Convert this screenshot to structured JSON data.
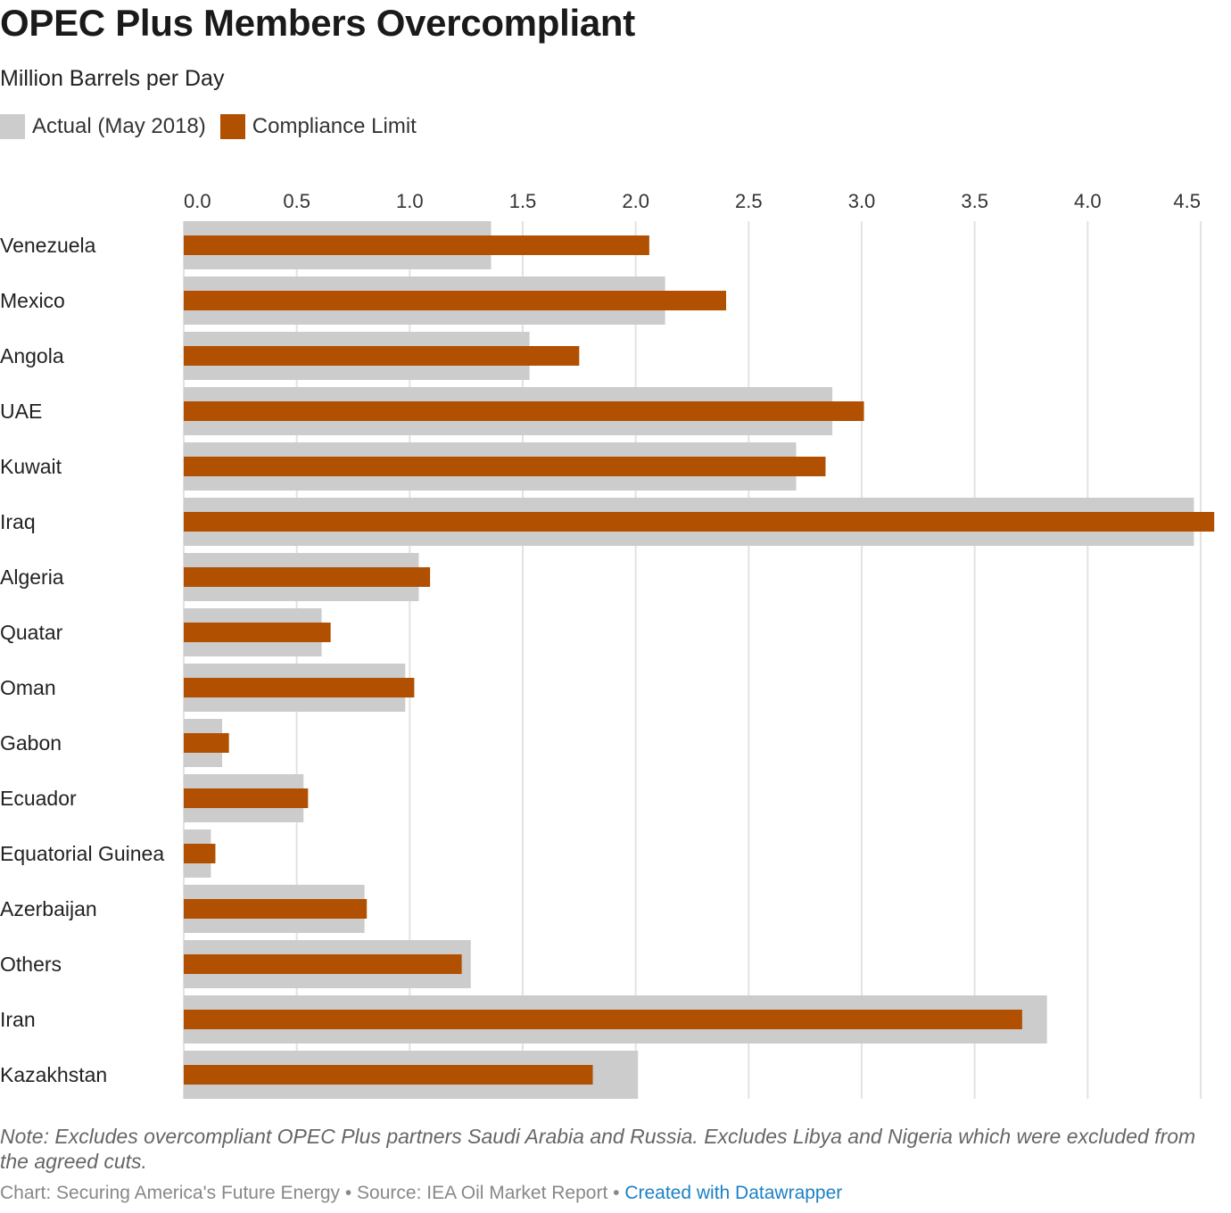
{
  "title": "OPEC Plus Members Overcompliant",
  "subtitle": "Million Barrels per Day",
  "legend": {
    "actual": "Actual (May 2018)",
    "limit": "Compliance Limit"
  },
  "colors": {
    "actual": "#cccccc",
    "limit": "#b15000",
    "grid": "#e2e2e2"
  },
  "note": "Note: Excludes overcompliant OPEC Plus partners Saudi Arabia and Russia. Excludes Libya and Nigeria which were excluded from the agreed cuts.",
  "footer": {
    "source": "Chart: Securing America's Future Energy • Source: IEA Oil Market Report • ",
    "credit": "Created with Datawrapper"
  },
  "chart_data": {
    "type": "bar",
    "orientation": "horizontal",
    "categories": [
      "Venezuela",
      "Mexico",
      "Angola",
      "UAE",
      "Kuwait",
      "Iraq",
      "Algeria",
      "Quatar",
      "Oman",
      "Gabon",
      "Ecuador",
      "Equatorial Guinea",
      "Azerbaijan",
      "Others",
      "Iran",
      "Kazakhstan"
    ],
    "series": [
      {
        "name": "Actual (May 2018)",
        "values": [
          1.36,
          2.13,
          1.53,
          2.87,
          2.71,
          4.47,
          1.04,
          0.61,
          0.98,
          0.17,
          0.53,
          0.12,
          0.8,
          1.27,
          3.82,
          2.01
        ]
      },
      {
        "name": "Compliance Limit",
        "values": [
          2.06,
          2.4,
          1.75,
          3.01,
          2.84,
          4.56,
          1.09,
          0.65,
          1.02,
          0.2,
          0.55,
          0.14,
          0.81,
          1.23,
          3.71,
          1.81
        ]
      }
    ],
    "xticks": [
      "0.0",
      "0.5",
      "1.0",
      "1.5",
      "2.0",
      "2.5",
      "3.0",
      "3.5",
      "4.0",
      "4.5"
    ],
    "xlim": [
      0,
      4.5
    ],
    "grid": true,
    "legend_position": "top-left"
  }
}
